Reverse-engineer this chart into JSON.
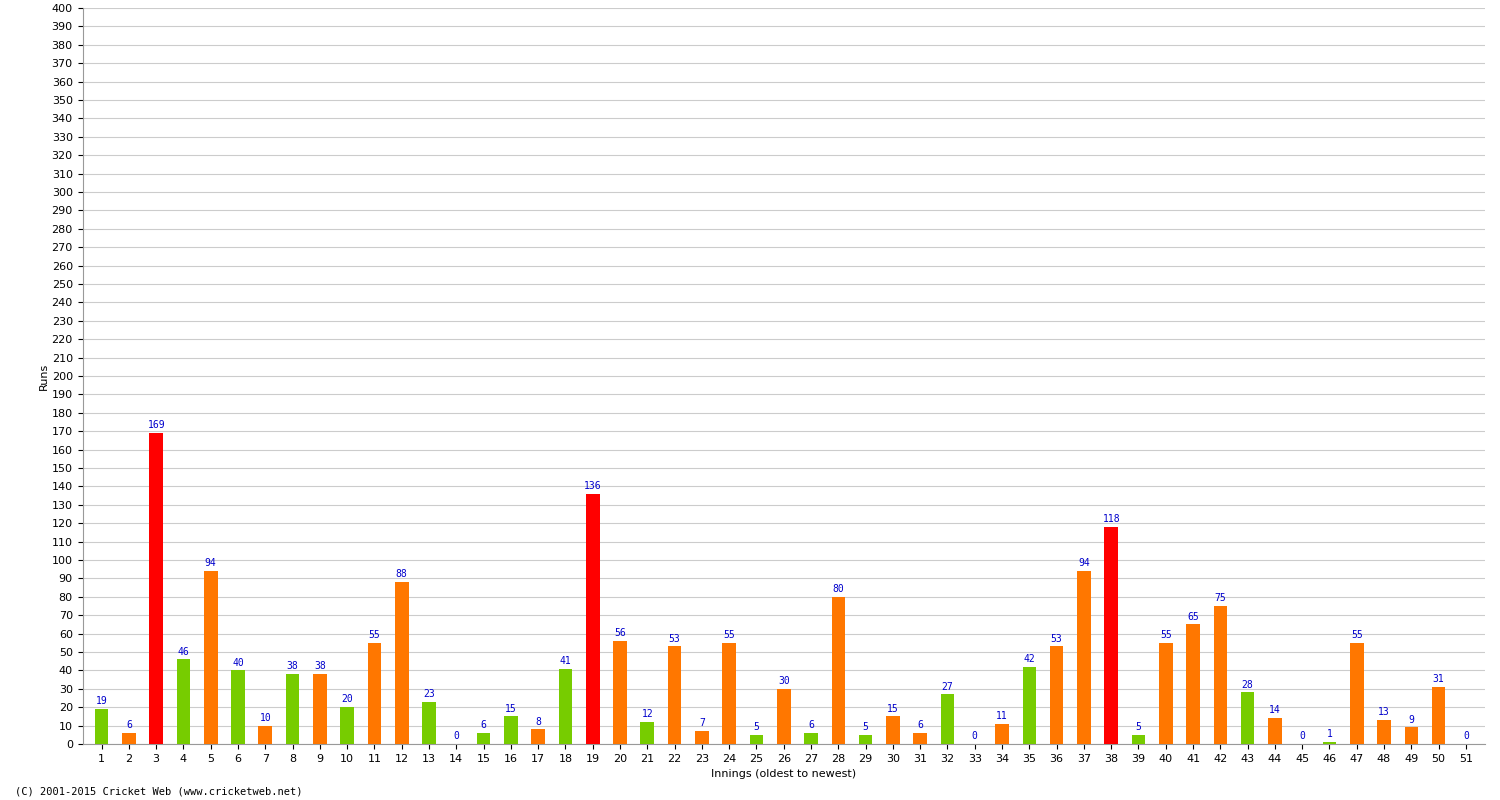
{
  "innings": [
    1,
    2,
    3,
    4,
    5,
    6,
    7,
    8,
    9,
    10,
    11,
    12,
    13,
    14,
    15,
    16,
    17,
    18,
    19,
    20,
    21,
    22,
    23,
    24,
    25,
    26,
    27,
    28,
    29,
    30,
    31,
    32,
    33,
    34,
    35,
    36,
    37,
    38,
    39,
    40,
    41,
    42,
    43,
    44,
    45,
    46,
    47,
    48,
    49,
    50,
    51
  ],
  "scores": [
    19,
    6,
    169,
    46,
    94,
    40,
    10,
    38,
    38,
    20,
    55,
    88,
    23,
    0,
    6,
    15,
    8,
    41,
    136,
    56,
    12,
    53,
    7,
    55,
    5,
    30,
    6,
    80,
    5,
    15,
    6,
    27,
    0,
    11,
    42,
    53,
    94,
    118,
    5,
    55,
    65,
    75,
    28,
    14,
    0,
    1,
    55,
    13,
    9,
    31,
    0
  ],
  "colors": [
    "#77cc00",
    "#ff7700",
    "#ff0000",
    "#77cc00",
    "#ff7700",
    "#77cc00",
    "#ff7700",
    "#77cc00",
    "#ff7700",
    "#77cc00",
    "#ff7700",
    "#ff7700",
    "#77cc00",
    "#77cc00",
    "#77cc00",
    "#77cc00",
    "#ff7700",
    "#77cc00",
    "#ff0000",
    "#ff7700",
    "#77cc00",
    "#ff7700",
    "#ff7700",
    "#ff7700",
    "#77cc00",
    "#ff7700",
    "#77cc00",
    "#ff7700",
    "#77cc00",
    "#ff7700",
    "#ff7700",
    "#77cc00",
    "#77cc00",
    "#ff7700",
    "#77cc00",
    "#ff7700",
    "#ff7700",
    "#ff0000",
    "#77cc00",
    "#ff7700",
    "#ff7700",
    "#ff7700",
    "#77cc00",
    "#ff7700",
    "#ff7700",
    "#77cc00",
    "#ff7700",
    "#ff7700",
    "#ff7700",
    "#ff7700",
    "#77cc00"
  ],
  "xlabel": "Innings (oldest to newest)",
  "ylabel": "Runs",
  "ylim": [
    0,
    400
  ],
  "yticks": [
    0,
    10,
    20,
    30,
    40,
    50,
    60,
    70,
    80,
    90,
    100,
    110,
    120,
    130,
    140,
    150,
    160,
    170,
    180,
    190,
    200,
    210,
    220,
    230,
    240,
    250,
    260,
    270,
    280,
    290,
    300,
    310,
    320,
    330,
    340,
    350,
    360,
    370,
    380,
    390,
    400
  ],
  "bg_color": "#ffffff",
  "grid_color": "#cccccc",
  "label_color": "#0000cc",
  "label_fontsize": 7,
  "axis_tick_fontsize": 8,
  "axis_label_fontsize": 8,
  "bar_width": 0.5,
  "footnote": "(C) 2001-2015 Cricket Web (www.cricketweb.net)"
}
